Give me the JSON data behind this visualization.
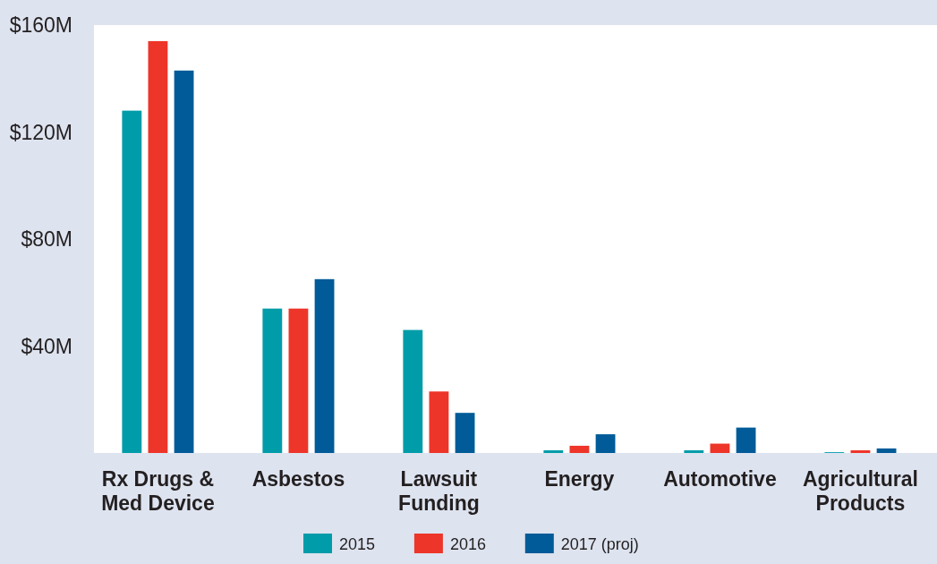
{
  "chart_data": {
    "type": "bar",
    "categories": [
      "Rx Drugs & Med Device",
      "Asbestos",
      "Lawsuit Funding",
      "Energy",
      "Automotive",
      "Agricultural Products"
    ],
    "series": [
      {
        "name": "2015",
        "color": "#009ca9",
        "values": [
          128,
          54,
          46,
          1,
          1,
          0.3
        ]
      },
      {
        "name": "2016",
        "color": "#ee3529",
        "values": [
          154,
          54,
          23,
          2.7,
          3.5,
          1
        ]
      },
      {
        "name": "2017 (proj)",
        "color": "#005b98",
        "values": [
          143,
          65,
          15,
          7,
          9.5,
          1.7
        ]
      }
    ],
    "ylim": [
      0,
      160
    ],
    "yticks": [
      {
        "value": 40,
        "label": "$40M"
      },
      {
        "value": 80,
        "label": "$80M"
      },
      {
        "value": 120,
        "label": "$120M"
      },
      {
        "value": 160,
        "label": "$160M"
      }
    ],
    "grid": false,
    "legend": "bottom"
  }
}
